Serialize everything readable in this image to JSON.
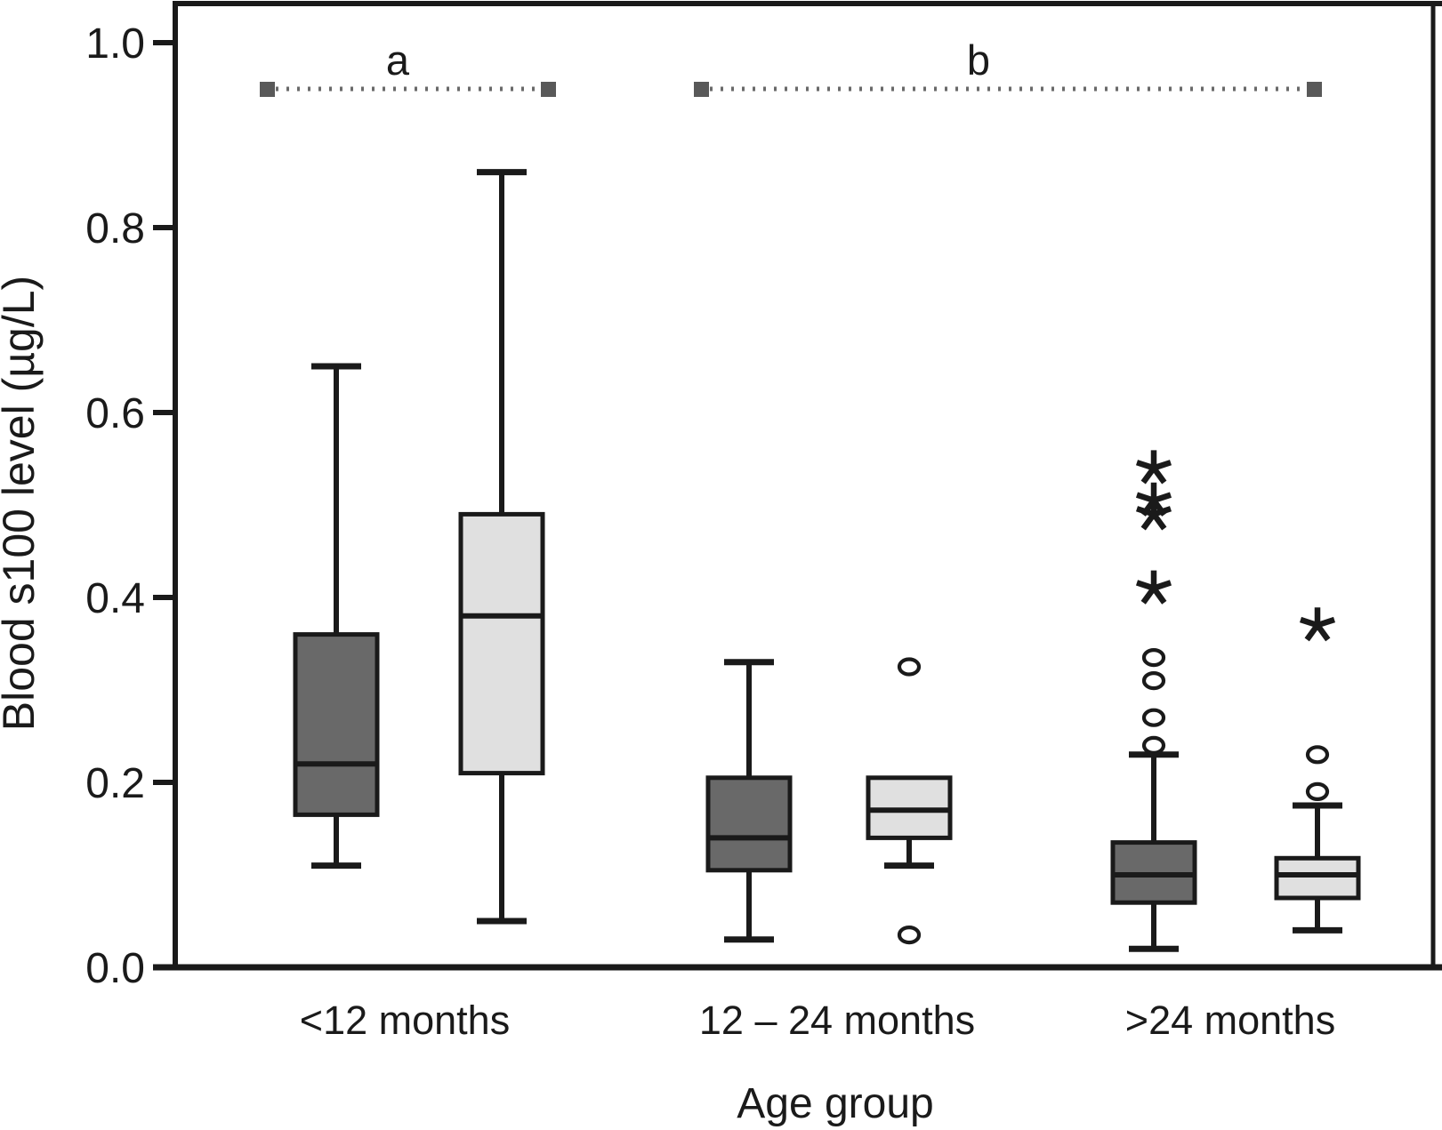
{
  "figure": {
    "background": "#ffffff",
    "ink_color": "#1a1a1a"
  },
  "chart_data": {
    "type": "boxplot",
    "title": "",
    "xlabel": "Age group",
    "ylabel": "Blood s100 level (µg/L)",
    "ylim": [
      0.0,
      1.0
    ],
    "yticks": [
      0.0,
      0.2,
      0.4,
      0.6,
      0.8,
      1.0
    ],
    "ytick_labels": [
      "0.0",
      "0.2",
      "0.4",
      "0.6",
      "0.8",
      "1.0"
    ],
    "categories": [
      "<12 months",
      "12 – 24 months",
      ">24 months"
    ],
    "grid": false,
    "legend": "none",
    "series": [
      {
        "name": "dark-gray-boxes",
        "fill": "#696969",
        "stroke": "#1a1a1a",
        "boxes": [
          {
            "category": "<12 months",
            "whisker_low": 0.11,
            "q1": 0.165,
            "median": 0.22,
            "q3": 0.36,
            "whisker_high": 0.65,
            "outliers_circle": [],
            "outliers_star": []
          },
          {
            "category": "12 – 24 months",
            "whisker_low": 0.03,
            "q1": 0.105,
            "median": 0.14,
            "q3": 0.205,
            "whisker_high": 0.33,
            "outliers_circle": [],
            "outliers_star": []
          },
          {
            "category": ">24 months",
            "whisker_low": 0.02,
            "q1": 0.07,
            "median": 0.1,
            "q3": 0.135,
            "whisker_high": 0.23,
            "outliers_circle": [
              0.24,
              0.27,
              0.31,
              0.335
            ],
            "outliers_star": [
              0.41,
              0.49,
              0.505,
              0.54
            ]
          }
        ]
      },
      {
        "name": "light-gray-boxes",
        "fill": "#e0e0e0",
        "stroke": "#1a1a1a",
        "boxes": [
          {
            "category": "<12 months",
            "whisker_low": 0.05,
            "q1": 0.21,
            "median": 0.38,
            "q3": 0.49,
            "whisker_high": 0.86,
            "outliers_circle": [],
            "outliers_star": []
          },
          {
            "category": "12 – 24 months",
            "whisker_low": 0.11,
            "q1": 0.14,
            "median": 0.17,
            "q3": 0.205,
            "whisker_high": null,
            "outliers_circle": [
              0.325,
              0.035
            ],
            "outliers_star": []
          },
          {
            "category": ">24 months",
            "whisker_low": 0.04,
            "q1": 0.075,
            "median": 0.1,
            "q3": 0.118,
            "whisker_high": 0.175,
            "outliers_circle": [
              0.23,
              0.19
            ],
            "outliers_star": [
              0.37
            ]
          }
        ]
      }
    ],
    "annotations": [
      {
        "label": "a",
        "y_value": 0.95,
        "spans": "<12 months pair",
        "marker_color": "#595959",
        "line_color": "#6a6a6a"
      },
      {
        "label": "b",
        "y_value": 0.95,
        "spans": "12 – 24 months through >24 months",
        "marker_color": "#595959",
        "line_color": "#6a6a6a"
      }
    ]
  }
}
